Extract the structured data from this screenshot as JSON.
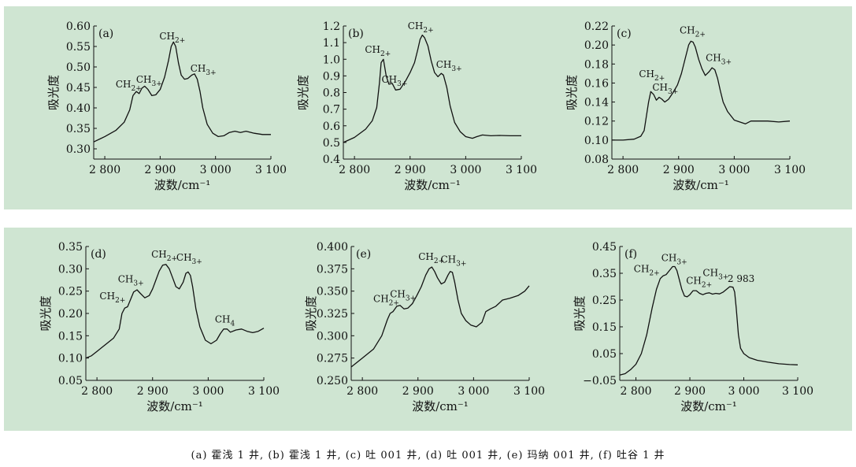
{
  "chart_data": [
    {
      "id": "a",
      "type": "line",
      "panel_label": "(a)",
      "xlabel": "波数/cm⁻¹",
      "ylabel": "吸光度",
      "xlim": [
        2780,
        3100
      ],
      "ylim": [
        0.275,
        0.6
      ],
      "xticks": [
        2800,
        2900,
        3000,
        3100
      ],
      "xtick_labels": [
        "2 800",
        "2 900",
        "3 000",
        "3 100"
      ],
      "yticks": [
        0.3,
        0.35,
        0.4,
        0.45,
        0.5,
        0.55,
        0.6
      ],
      "ytick_labels": [
        "0.30",
        "0.35",
        "0.40",
        "0.45",
        "0.50",
        "0.55",
        "0.60"
      ],
      "x": [
        2780,
        2800,
        2820,
        2835,
        2845,
        2851,
        2857,
        2862,
        2867,
        2872,
        2878,
        2885,
        2892,
        2900,
        2908,
        2915,
        2920,
        2924,
        2928,
        2933,
        2938,
        2944,
        2950,
        2957,
        2962,
        2967,
        2972,
        2977,
        2985,
        2995,
        3005,
        3015,
        3025,
        3035,
        3045,
        3055,
        3070,
        3085,
        3100
      ],
      "y": [
        0.317,
        0.33,
        0.345,
        0.365,
        0.395,
        0.43,
        0.44,
        0.435,
        0.448,
        0.453,
        0.445,
        0.43,
        0.432,
        0.445,
        0.475,
        0.515,
        0.55,
        0.561,
        0.55,
        0.51,
        0.48,
        0.47,
        0.472,
        0.48,
        0.483,
        0.47,
        0.44,
        0.4,
        0.36,
        0.338,
        0.33,
        0.332,
        0.34,
        0.343,
        0.34,
        0.343,
        0.338,
        0.335,
        0.335
      ],
      "annotations": [
        {
          "base": "CH",
          "sub": "2+",
          "x": 2843,
          "y": 0.45
        },
        {
          "base": "CH",
          "sub": "3+",
          "x": 2880,
          "y": 0.462
        },
        {
          "base": "CH",
          "sub": "2+",
          "x": 2922,
          "y": 0.567
        },
        {
          "base": "CH",
          "sub": "3+",
          "x": 2978,
          "y": 0.488
        }
      ]
    },
    {
      "id": "b",
      "type": "line",
      "panel_label": "(b)",
      "xlabel": "波数/cm⁻¹",
      "ylabel": "吸光度",
      "xlim": [
        2780,
        3100
      ],
      "ylim": [
        0.4,
        1.2
      ],
      "xticks": [
        2800,
        2900,
        3000,
        3100
      ],
      "xtick_labels": [
        "2 800",
        "2 900",
        "3 000",
        "3 100"
      ],
      "yticks": [
        0.4,
        0.5,
        0.6,
        0.7,
        0.8,
        0.9,
        1.0,
        1.1,
        1.2
      ],
      "ytick_labels": [
        "0.4",
        "0.5",
        "0.6",
        "0.7",
        "0.8",
        "0.9",
        "1.0",
        "1.1",
        "1.2"
      ],
      "x": [
        2780,
        2800,
        2820,
        2832,
        2840,
        2845,
        2848,
        2852,
        2857,
        2862,
        2868,
        2874,
        2882,
        2892,
        2900,
        2908,
        2914,
        2918,
        2922,
        2926,
        2932,
        2938,
        2944,
        2950,
        2956,
        2960,
        2966,
        2972,
        2980,
        2990,
        3000,
        3012,
        3020,
        3030,
        3045,
        3060,
        3080,
        3100
      ],
      "y": [
        0.5,
        0.53,
        0.58,
        0.63,
        0.71,
        0.86,
        0.98,
        1.0,
        0.9,
        0.85,
        0.855,
        0.815,
        0.82,
        0.87,
        0.92,
        0.98,
        1.06,
        1.12,
        1.145,
        1.13,
        1.08,
        0.99,
        0.92,
        0.895,
        0.915,
        0.905,
        0.83,
        0.72,
        0.62,
        0.565,
        0.535,
        0.525,
        0.535,
        0.545,
        0.54,
        0.542,
        0.54,
        0.54
      ],
      "annotations": [
        {
          "base": "CH",
          "sub": "2+",
          "x": 2842,
          "y": 1.04
        },
        {
          "base": "CH",
          "sub": "3+",
          "x": 2872,
          "y": 0.86
        },
        {
          "base": "CH",
          "sub": "2+",
          "x": 2919,
          "y": 1.18
        },
        {
          "base": "CH",
          "sub": "3+",
          "x": 2970,
          "y": 0.95
        }
      ]
    },
    {
      "id": "c",
      "type": "line",
      "panel_label": "(c)",
      "xlabel": "波数/cm⁻¹",
      "ylabel": "吸光度",
      "xlim": [
        2780,
        3100
      ],
      "ylim": [
        0.08,
        0.22
      ],
      "xticks": [
        2800,
        2900,
        3000,
        3100
      ],
      "xtick_labels": [
        "2 800",
        "2 900",
        "3 000",
        "3 100"
      ],
      "yticks": [
        0.08,
        0.1,
        0.12,
        0.14,
        0.16,
        0.18,
        0.2,
        0.22
      ],
      "ytick_labels": [
        "0.08",
        "0.10",
        "0.12",
        "0.14",
        "0.16",
        "0.18",
        "0.20",
        "0.22"
      ],
      "x": [
        2780,
        2800,
        2820,
        2832,
        2838,
        2842,
        2846,
        2850,
        2855,
        2860,
        2865,
        2870,
        2875,
        2882,
        2890,
        2898,
        2905,
        2912,
        2918,
        2922,
        2926,
        2930,
        2936,
        2942,
        2948,
        2955,
        2960,
        2965,
        2970,
        2975,
        2980,
        2988,
        3000,
        3010,
        3020,
        3030,
        3045,
        3060,
        3080,
        3100
      ],
      "y": [
        0.1,
        0.1,
        0.101,
        0.104,
        0.11,
        0.125,
        0.14,
        0.151,
        0.148,
        0.142,
        0.145,
        0.143,
        0.14,
        0.143,
        0.15,
        0.158,
        0.17,
        0.186,
        0.2,
        0.204,
        0.203,
        0.198,
        0.185,
        0.175,
        0.168,
        0.172,
        0.176,
        0.174,
        0.165,
        0.152,
        0.14,
        0.13,
        0.121,
        0.119,
        0.117,
        0.12,
        0.12,
        0.12,
        0.119,
        0.12
      ],
      "annotations": [
        {
          "base": "CH",
          "sub": "2+",
          "x": 2852,
          "y": 0.166
        },
        {
          "base": "CH",
          "sub": "3+",
          "x": 2876,
          "y": 0.152
        },
        {
          "base": "CH",
          "sub": "2+",
          "x": 2925,
          "y": 0.212
        },
        {
          "base": "CH",
          "sub": "3+",
          "x": 2972,
          "y": 0.183
        }
      ]
    },
    {
      "id": "d",
      "type": "line",
      "panel_label": "(d)",
      "xlabel": "波数/cm⁻¹",
      "ylabel": "吸光度",
      "xlim": [
        2780,
        3100
      ],
      "ylim": [
        0.05,
        0.35
      ],
      "xticks": [
        2800,
        2900,
        3000,
        3100
      ],
      "xtick_labels": [
        "2 800",
        "2 900",
        "3 000",
        "3 100"
      ],
      "yticks": [
        0.05,
        0.1,
        0.15,
        0.2,
        0.25,
        0.3,
        0.35
      ],
      "ytick_labels": [
        "0.05",
        "0.10",
        "0.15",
        "0.20",
        "0.25",
        "0.30",
        "0.35"
      ],
      "x": [
        2780,
        2790,
        2800,
        2815,
        2830,
        2840,
        2845,
        2850,
        2855,
        2860,
        2866,
        2872,
        2878,
        2886,
        2894,
        2900,
        2906,
        2912,
        2918,
        2924,
        2930,
        2936,
        2942,
        2948,
        2955,
        2960,
        2964,
        2968,
        2972,
        2978,
        2985,
        2995,
        3005,
        3015,
        3022,
        3028,
        3034,
        3040,
        3050,
        3060,
        3070,
        3080,
        3090,
        3100
      ],
      "y": [
        0.1,
        0.105,
        0.115,
        0.13,
        0.145,
        0.165,
        0.2,
        0.212,
        0.215,
        0.23,
        0.248,
        0.253,
        0.245,
        0.235,
        0.24,
        0.255,
        0.275,
        0.295,
        0.308,
        0.31,
        0.3,
        0.28,
        0.26,
        0.255,
        0.27,
        0.29,
        0.293,
        0.285,
        0.26,
        0.21,
        0.17,
        0.14,
        0.132,
        0.14,
        0.155,
        0.165,
        0.165,
        0.158,
        0.163,
        0.165,
        0.16,
        0.157,
        0.16,
        0.167
      ],
      "annotations": [
        {
          "base": "CH",
          "sub": "2+",
          "x": 2828,
          "y": 0.232
        },
        {
          "base": "CH",
          "sub": "3+",
          "x": 2861,
          "y": 0.27
        },
        {
          "base": "CH",
          "sub": "2+",
          "x": 2921,
          "y": 0.325
        },
        {
          "base": "CH",
          "sub": "3+",
          "x": 2966,
          "y": 0.318
        },
        {
          "base": "CH",
          "sub": "4",
          "x": 3030,
          "y": 0.18
        }
      ]
    },
    {
      "id": "e",
      "type": "line",
      "panel_label": "(e)",
      "xlabel": "波数/cm⁻¹",
      "ylabel": "吸光度",
      "xlim": [
        2780,
        3100
      ],
      "ylim": [
        0.25,
        0.4
      ],
      "xticks": [
        2800,
        2900,
        3000,
        3100
      ],
      "xtick_labels": [
        "2 800",
        "2 900",
        "3 000",
        "3 100"
      ],
      "yticks": [
        0.25,
        0.275,
        0.3,
        0.325,
        0.35,
        0.375,
        0.4
      ],
      "ytick_labels": [
        "0.250",
        "0.275",
        "0.300",
        "0.325",
        "0.350",
        "0.375",
        "0.400"
      ],
      "x": [
        2780,
        2800,
        2820,
        2835,
        2845,
        2850,
        2855,
        2862,
        2868,
        2875,
        2882,
        2890,
        2898,
        2906,
        2914,
        2920,
        2925,
        2930,
        2935,
        2942,
        2948,
        2954,
        2958,
        2962,
        2966,
        2972,
        2978,
        2986,
        2995,
        3005,
        3015,
        3022,
        3030,
        3040,
        3052,
        3065,
        3080,
        3092,
        3100
      ],
      "y": [
        0.265,
        0.275,
        0.285,
        0.3,
        0.318,
        0.325,
        0.327,
        0.333,
        0.334,
        0.33,
        0.331,
        0.336,
        0.345,
        0.355,
        0.368,
        0.375,
        0.377,
        0.372,
        0.365,
        0.358,
        0.36,
        0.368,
        0.372,
        0.371,
        0.36,
        0.34,
        0.325,
        0.317,
        0.312,
        0.31,
        0.315,
        0.327,
        0.33,
        0.333,
        0.34,
        0.342,
        0.345,
        0.35,
        0.356
      ],
      "annotations": [
        {
          "base": "CH",
          "sub": "2+",
          "x": 2843,
          "y": 0.338
        },
        {
          "base": "CH",
          "sub": "3+",
          "x": 2873,
          "y": 0.343
        },
        {
          "base": "CH",
          "sub": "2+",
          "x": 2924,
          "y": 0.385
        },
        {
          "base": "CH",
          "sub": "3+",
          "x": 2964,
          "y": 0.382
        }
      ]
    },
    {
      "id": "f",
      "type": "line",
      "panel_label": "(f)",
      "xlabel": "波数/cm⁻¹",
      "ylabel": "吸光度",
      "xlim": [
        2770,
        3100
      ],
      "ylim": [
        -0.05,
        0.45
      ],
      "xticks": [
        2800,
        2900,
        3000,
        3100
      ],
      "xtick_labels": [
        "2 800",
        "2 900",
        "3 000",
        "3 100"
      ],
      "yticks": [
        -0.05,
        0.05,
        0.15,
        0.25,
        0.35,
        0.45
      ],
      "ytick_labels": [
        "−0.05",
        "0.05",
        "0.15",
        "0.25",
        "0.35",
        "0.45"
      ],
      "x": [
        2770,
        2780,
        2790,
        2800,
        2810,
        2820,
        2830,
        2838,
        2845,
        2850,
        2856,
        2862,
        2868,
        2872,
        2876,
        2880,
        2885,
        2890,
        2895,
        2900,
        2906,
        2912,
        2918,
        2924,
        2930,
        2936,
        2942,
        2948,
        2955,
        2962,
        2968,
        2974,
        2980,
        2983,
        2986,
        2990,
        2994,
        3000,
        3010,
        3025,
        3045,
        3065,
        3085,
        3100
      ],
      "y": [
        -0.03,
        -0.025,
        -0.01,
        0.01,
        0.05,
        0.12,
        0.22,
        0.29,
        0.33,
        0.34,
        0.345,
        0.36,
        0.375,
        0.375,
        0.36,
        0.33,
        0.29,
        0.265,
        0.262,
        0.27,
        0.285,
        0.285,
        0.275,
        0.27,
        0.275,
        0.277,
        0.272,
        0.275,
        0.273,
        0.28,
        0.29,
        0.3,
        0.298,
        0.28,
        0.22,
        0.12,
        0.07,
        0.05,
        0.035,
        0.025,
        0.018,
        0.012,
        0.009,
        0.008
      ],
      "annotations": [
        {
          "base": "CH",
          "sub": "2+",
          "x": 2820,
          "y": 0.355
        },
        {
          "base": "CH",
          "sub": "3+",
          "x": 2871,
          "y": 0.395
        },
        {
          "base": "CH",
          "sub": "2+",
          "x": 2917,
          "y": 0.31
        },
        {
          "base": "CH",
          "sub": "3+",
          "x": 2948,
          "y": 0.34
        },
        {
          "base": "2 983",
          "sub": "",
          "x": 2995,
          "y": 0.318
        }
      ]
    }
  ],
  "caption": "(a) 霍浅 1 井, (b) 霍浅 1 井, (c) 吐 001 井, (d) 吐 001 井, (e) 玛纳 001 井, (f) 吐谷 1 井",
  "colors": {
    "panel_bg": "#cfe5d2",
    "line": "#111111"
  }
}
